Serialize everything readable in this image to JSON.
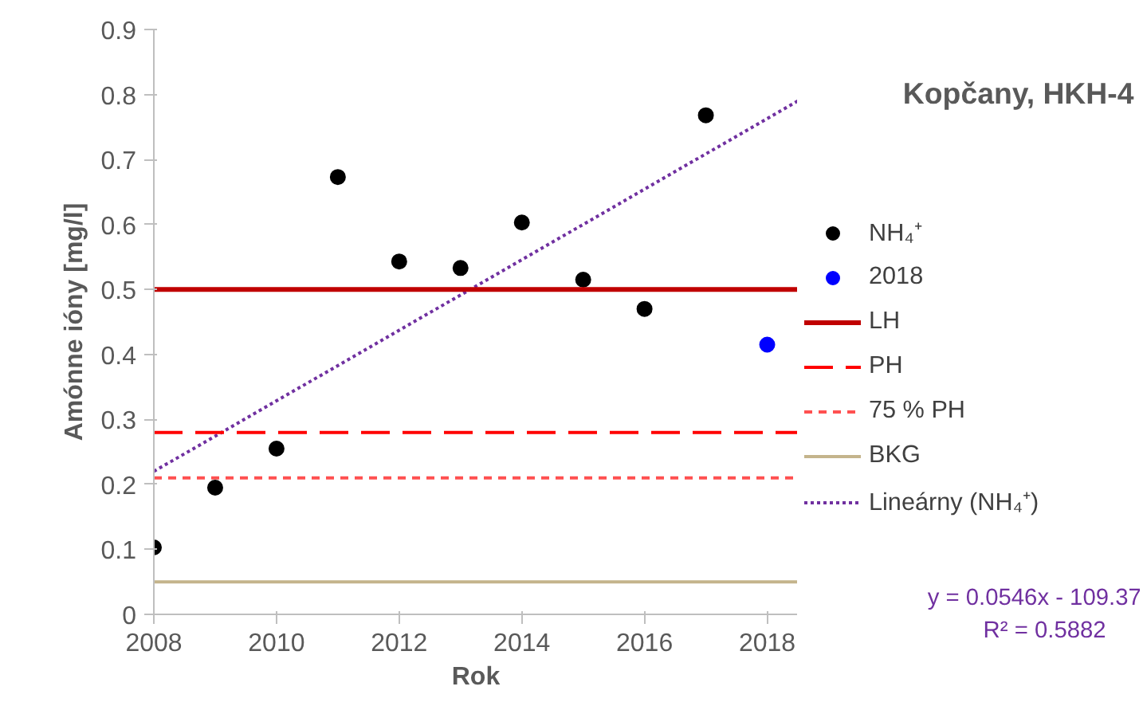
{
  "chart_data": {
    "type": "scatter",
    "title": "Kopčany, HKH-4",
    "xlabel": "Rok",
    "ylabel": "Amónne ióny [mg/l]",
    "xlim": [
      2008,
      2018.5
    ],
    "xticks": [
      2008,
      2010,
      2012,
      2014,
      2016,
      2018
    ],
    "ylim": [
      0,
      0.9
    ],
    "yticks": [
      0,
      0.1,
      0.2,
      0.3,
      0.4,
      0.5,
      0.6,
      0.7,
      0.8,
      0.9
    ],
    "grid": false,
    "legend": "right",
    "marker": "circle",
    "series": [
      {
        "name": "NH₄⁺",
        "color": "#000000",
        "x": [
          2008,
          2009,
          2010,
          2011,
          2012,
          2013,
          2014,
          2015,
          2016,
          2017
        ],
        "values": [
          0.103,
          0.195,
          0.255,
          0.673,
          0.543,
          0.533,
          0.603,
          0.515,
          0.47,
          0.768
        ]
      },
      {
        "name": "2018",
        "color": "#0000ff",
        "x": [
          2018
        ],
        "values": [
          0.415
        ]
      },
      {
        "name": "Lineárny (NH₄⁺)",
        "type": "line",
        "marker": "none",
        "line_style": "dotted",
        "color": "#7030a0",
        "x": [
          2008,
          2018.5
        ],
        "values": [
          0.22,
          0.79
        ]
      }
    ],
    "ref_lines": [
      {
        "axis": "y",
        "value": 0.5,
        "label": "LH",
        "color": "#c00000",
        "line_style": "solid"
      },
      {
        "axis": "y",
        "value": 0.28,
        "label": "PH",
        "color": "#ff0000",
        "line_style": "dashed"
      },
      {
        "axis": "y",
        "value": 0.21,
        "label": "75 % PH",
        "color": "#ff5050",
        "line_style": "dashed"
      },
      {
        "axis": "y",
        "value": 0.05,
        "label": "BKG",
        "color": "#c4b48c",
        "line_style": "solid"
      }
    ],
    "annotations": [
      "y = 0.0546x - 109.37",
      "R² = 0.5882"
    ]
  }
}
